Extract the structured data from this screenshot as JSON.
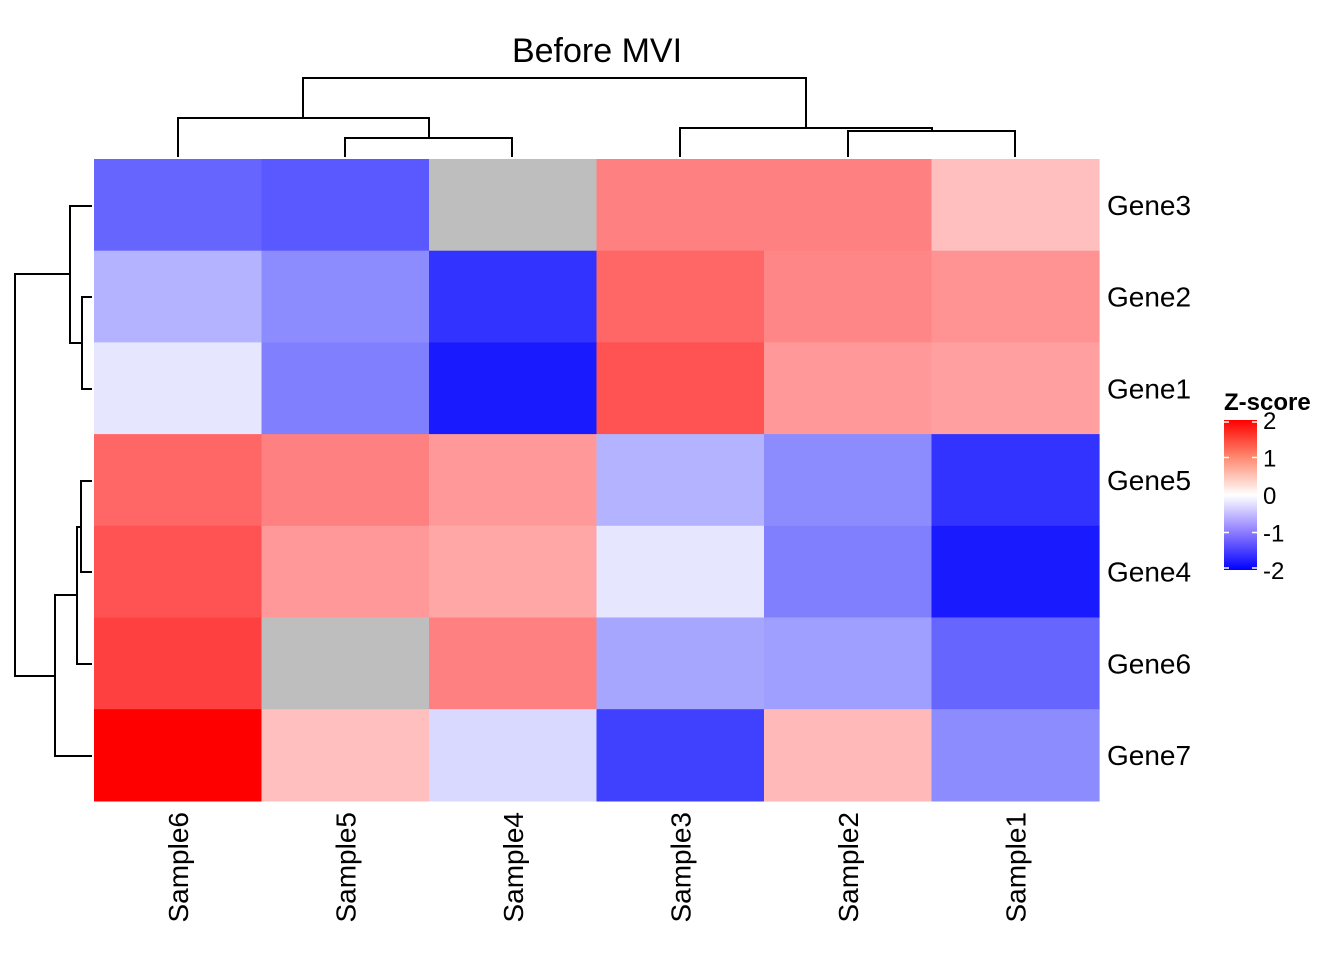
{
  "chart_data": {
    "type": "heatmap",
    "title": "Before MVI",
    "columns": [
      "Sample6",
      "Sample5",
      "Sample4",
      "Sample3",
      "Sample2",
      "Sample1"
    ],
    "rows": [
      "Gene3",
      "Gene2",
      "Gene1",
      "Gene5",
      "Gene4",
      "Gene6",
      "Gene7"
    ],
    "values": [
      [
        -1.2,
        -1.3,
        null,
        1.0,
        1.0,
        0.5
      ],
      [
        -0.6,
        -0.9,
        -1.6,
        1.2,
        0.95,
        0.85
      ],
      [
        -0.2,
        -1.0,
        -1.8,
        1.35,
        0.8,
        0.75
      ],
      [
        1.2,
        1.0,
        0.8,
        -0.6,
        -0.9,
        -1.6
      ],
      [
        1.35,
        0.8,
        0.7,
        -0.2,
        -1.0,
        -1.8
      ],
      [
        1.5,
        null,
        1.0,
        -0.7,
        -0.75,
        -1.2
      ],
      [
        2.0,
        0.5,
        -0.3,
        -1.5,
        0.55,
        -0.9
      ]
    ],
    "na_color": "#BEBEBE",
    "color_scale": {
      "low": "#0000FF",
      "mid": "#FFFFFF",
      "high": "#FF0000",
      "range": [
        -2,
        2
      ]
    },
    "legend": {
      "title": "Z-score",
      "ticks": [
        2,
        1,
        0,
        -1,
        -2
      ],
      "placement": "right"
    },
    "row_dendrogram": true,
    "column_dendrogram": true
  }
}
